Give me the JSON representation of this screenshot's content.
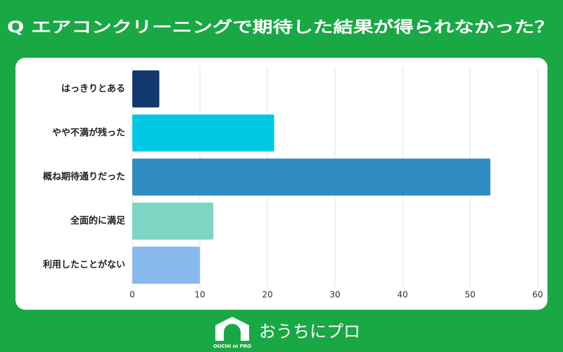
{
  "chart_data": {
    "type": "hbar",
    "title": "Q エアコンクリーニングで期待した結果が得られなかった？",
    "categories": [
      "はっきりとある",
      "やや不満が残った",
      "概ね期待通りだった",
      "全面的に満足",
      "利用したことがない"
    ],
    "values": [
      4,
      21,
      53,
      12,
      10
    ],
    "colors": [
      "#12386e",
      "#00c8e2",
      "#2e8bc2",
      "#7dd6c4",
      "#87b9ec"
    ],
    "xlim": [
      0,
      60
    ],
    "xticks": [
      0,
      10,
      20,
      30,
      40,
      50,
      60
    ],
    "grid": true
  },
  "logo": {
    "name": "おうちにプロ",
    "sub": "OUCHI ni PRO"
  }
}
